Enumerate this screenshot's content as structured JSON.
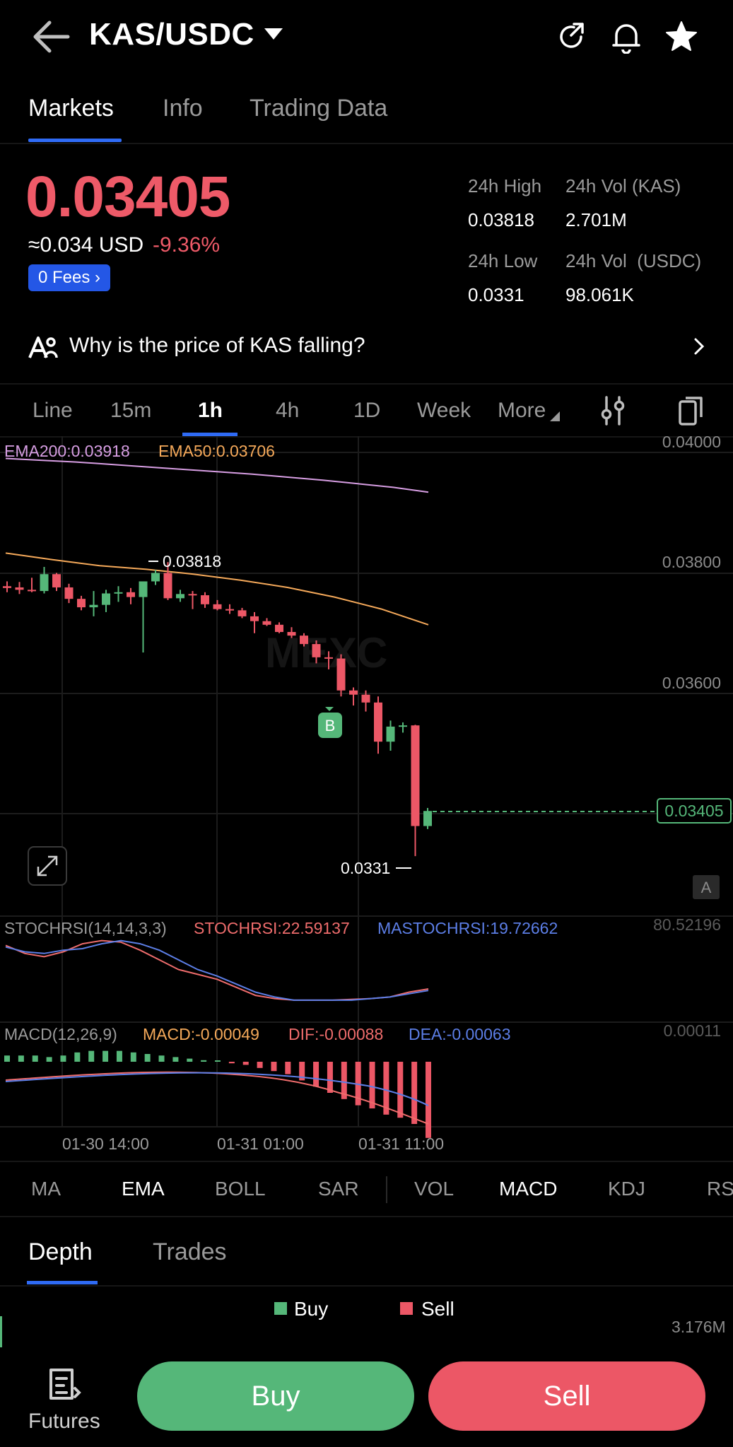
{
  "header": {
    "pair": "KAS/USDC"
  },
  "tabs": [
    "Markets",
    "Info",
    "Trading Data"
  ],
  "price": {
    "last": "0.03405",
    "approx": "≈0.034 USD",
    "change": "-9.36%",
    "fees": "0 Fees"
  },
  "stats": {
    "high_label": "24h High",
    "high_value": "0.03818",
    "vol_kas_label": "24h Vol (KAS)",
    "vol_kas_value": "2.701M",
    "low_label": "24h Low",
    "low_value": "0.0331",
    "vol_usdc_label": "24h Vol  (USDC)",
    "vol_usdc_value": "98.061K"
  },
  "why": {
    "text": "Why is the price of KAS falling?"
  },
  "intervals": [
    "Line",
    "15m",
    "1h",
    "4h",
    "1D",
    "Week",
    "More"
  ],
  "intervals_active": "1h",
  "chart_labels": {
    "ema200": "EMA200:0.03918",
    "ema50": "EMA50:0.03706",
    "y_ticks": [
      "0.04000",
      "0.03800",
      "0.03600"
    ],
    "current": "0.03405",
    "high_marker": "0.03818",
    "low_marker": "0.0331",
    "buy_marker": "B",
    "watermark": "MEXC",
    "scale_badge": "A",
    "stoch_title": "STOCHRSI(14,14,3,3)",
    "stoch_val": "STOCHRSI:22.59137",
    "stoch_ma": "MASTOCHRSI:19.72662",
    "stoch_max": "80.52196",
    "macd_title": "MACD(12,26,9)",
    "macd_val": "MACD:-0.00049",
    "macd_dif": "DIF:-0.00088",
    "macd_dea": "DEA:-0.00063",
    "macd_max": "0.00011",
    "x_ticks": [
      "01-30 14:00",
      "01-31 01:00",
      "01-31 11:00"
    ]
  },
  "chart_data": {
    "type": "candlestick",
    "ylim": [
      0.0327,
      0.04
    ],
    "candles": [
      {
        "o": 0.03778,
        "h": 0.03786,
        "l": 0.03768,
        "c": 0.03775
      },
      {
        "o": 0.03776,
        "h": 0.03785,
        "l": 0.03765,
        "c": 0.03772
      },
      {
        "o": 0.03772,
        "h": 0.03792,
        "l": 0.03768,
        "c": 0.0377
      },
      {
        "o": 0.0377,
        "h": 0.0381,
        "l": 0.03766,
        "c": 0.03798
      },
      {
        "o": 0.03798,
        "h": 0.038,
        "l": 0.0377,
        "c": 0.03776
      },
      {
        "o": 0.03776,
        "h": 0.03782,
        "l": 0.0375,
        "c": 0.03757
      },
      {
        "o": 0.03757,
        "h": 0.03762,
        "l": 0.03738,
        "c": 0.03743
      },
      {
        "o": 0.03743,
        "h": 0.0377,
        "l": 0.03728,
        "c": 0.03747
      },
      {
        "o": 0.03747,
        "h": 0.03772,
        "l": 0.03735,
        "c": 0.03766
      },
      {
        "o": 0.03766,
        "h": 0.03778,
        "l": 0.03752,
        "c": 0.03768
      },
      {
        "o": 0.03768,
        "h": 0.03775,
        "l": 0.03748,
        "c": 0.0376
      },
      {
        "o": 0.0376,
        "h": 0.03782,
        "l": 0.03668,
        "c": 0.03786
      },
      {
        "o": 0.03786,
        "h": 0.03805,
        "l": 0.0378,
        "c": 0.038
      },
      {
        "o": 0.038,
        "h": 0.03818,
        "l": 0.03755,
        "c": 0.03758
      },
      {
        "o": 0.03758,
        "h": 0.03772,
        "l": 0.03752,
        "c": 0.03765
      },
      {
        "o": 0.03765,
        "h": 0.0377,
        "l": 0.0374,
        "c": 0.03763
      },
      {
        "o": 0.03763,
        "h": 0.03768,
        "l": 0.03742,
        "c": 0.03748
      },
      {
        "o": 0.03748,
        "h": 0.03755,
        "l": 0.03738,
        "c": 0.0374
      },
      {
        "o": 0.0374,
        "h": 0.03748,
        "l": 0.03732,
        "c": 0.03738
      },
      {
        "o": 0.03738,
        "h": 0.03742,
        "l": 0.03725,
        "c": 0.03728
      },
      {
        "o": 0.03728,
        "h": 0.03735,
        "l": 0.037,
        "c": 0.0372
      },
      {
        "o": 0.0372,
        "h": 0.03725,
        "l": 0.03712,
        "c": 0.03714
      },
      {
        "o": 0.03714,
        "h": 0.03718,
        "l": 0.037,
        "c": 0.03702
      },
      {
        "o": 0.03702,
        "h": 0.0371,
        "l": 0.03692,
        "c": 0.03696
      },
      {
        "o": 0.03696,
        "h": 0.037,
        "l": 0.03678,
        "c": 0.03682
      },
      {
        "o": 0.03682,
        "h": 0.03688,
        "l": 0.0365,
        "c": 0.0366
      },
      {
        "o": 0.0366,
        "h": 0.0367,
        "l": 0.0364,
        "c": 0.03658
      },
      {
        "o": 0.03658,
        "h": 0.03665,
        "l": 0.03595,
        "c": 0.03605
      },
      {
        "o": 0.03605,
        "h": 0.0361,
        "l": 0.0358,
        "c": 0.03598
      },
      {
        "o": 0.03598,
        "h": 0.03605,
        "l": 0.0357,
        "c": 0.03585
      },
      {
        "o": 0.03585,
        "h": 0.03595,
        "l": 0.035,
        "c": 0.0352
      },
      {
        "o": 0.0352,
        "h": 0.03555,
        "l": 0.03505,
        "c": 0.03545
      },
      {
        "o": 0.03545,
        "h": 0.03552,
        "l": 0.03535,
        "c": 0.03547
      },
      {
        "o": 0.03547,
        "h": 0.03548,
        "l": 0.0333,
        "c": 0.0338
      },
      {
        "o": 0.0338,
        "h": 0.0341,
        "l": 0.03375,
        "c": 0.03405
      }
    ],
    "ema200": [
      0.0399,
      0.03987,
      0.03984,
      0.0398,
      0.03976,
      0.03972,
      0.03968,
      0.03964,
      0.03959,
      0.03954,
      0.03948,
      0.03942,
      0.03934
    ],
    "ema50": [
      0.03833,
      0.03822,
      0.03812,
      0.03806,
      0.03798,
      0.03788,
      0.03776,
      0.0376,
      0.0374,
      0.03714
    ],
    "stochrsi": [
      90,
      80,
      76,
      82,
      92,
      96,
      94,
      84,
      72,
      60,
      54,
      48,
      38,
      28,
      24,
      22,
      22,
      22,
      23,
      24,
      26,
      32,
      36
    ],
    "mastochrsi": [
      88,
      82,
      80,
      84,
      86,
      92,
      96,
      92,
      84,
      72,
      60,
      52,
      42,
      32,
      26,
      22,
      22,
      22,
      22,
      24,
      26,
      30,
      34
    ],
    "macd_hist": [
      4e-05,
      4e-05,
      4e-05,
      3e-05,
      4e-05,
      6e-05,
      7e-05,
      7e-05,
      7e-05,
      6e-05,
      5e-05,
      4e-05,
      3e-05,
      2e-05,
      1e-05,
      0.0,
      -1e-05,
      -2e-05,
      -4e-05,
      -6e-05,
      -8e-05,
      -0.00012,
      -0.00016,
      -0.0002,
      -0.00024,
      -0.00028,
      -0.0003,
      -0.00034,
      -0.00036,
      -0.0004,
      -0.00049
    ]
  },
  "indicators": [
    "MA",
    "EMA",
    "BOLL",
    "SAR",
    "VOL",
    "MACD",
    "KDJ",
    "RS"
  ],
  "depth": {
    "tabs": [
      "Depth",
      "Trades"
    ],
    "legend_buy": "Buy",
    "legend_sell": "Sell",
    "value": "3.176M"
  },
  "bottom": {
    "futures": "Futures",
    "buy": "Buy",
    "sell": "Sell"
  },
  "colors": {
    "up": "#55b779",
    "down": "#ec5766",
    "accent": "#2f6bf5",
    "ema200": "#d79ee3",
    "ema50": "#f5a95a",
    "stoch": "#ee6c6c",
    "mastoch": "#5c7ee6"
  }
}
